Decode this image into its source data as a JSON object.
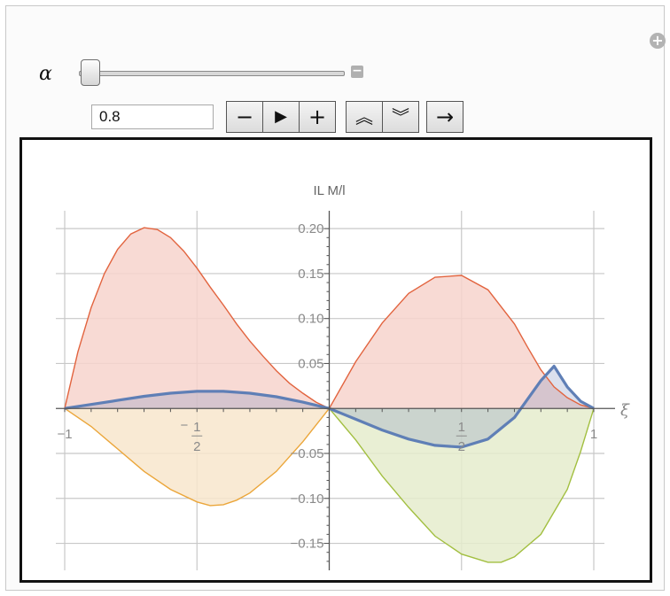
{
  "controls": {
    "parameter_label": "α",
    "slider_value": 0.8,
    "input_value": "0.8",
    "add_icon_glyph": "+",
    "collapse_icon_glyph": "−",
    "buttons": [
      {
        "name": "decrement-button",
        "icon": "minus-icon",
        "glyph": "−"
      },
      {
        "name": "play-button",
        "icon": "play-icon",
        "glyph": "▶"
      },
      {
        "name": "increment-button",
        "icon": "plus-icon",
        "glyph": "+"
      },
      {
        "name": "faster-button",
        "icon": "double-chevron-up-icon",
        "glyph": "︽"
      },
      {
        "name": "slower-button",
        "icon": "double-chevron-down-icon",
        "glyph": "︾"
      },
      {
        "name": "direction-button",
        "icon": "arrow-right-icon",
        "glyph": "→"
      }
    ]
  },
  "chart_data": {
    "type": "area",
    "ylabel": "IL M/l",
    "xlabel": "ξ",
    "xlim": [
      -1.0,
      1.0
    ],
    "ylim": [
      -0.18,
      0.21
    ],
    "grid": true,
    "x_ticks": [
      {
        "value": -1,
        "label": "−1"
      },
      {
        "value": -0.5,
        "label": "−",
        "numerator": "1",
        "denominator": "2"
      },
      {
        "value": 0.5,
        "label": "",
        "numerator": "1",
        "denominator": "2"
      },
      {
        "value": 1,
        "label": "1"
      }
    ],
    "y_ticks": [
      {
        "value": 0.2,
        "label": "0.20"
      },
      {
        "value": 0.15,
        "label": "0.15"
      },
      {
        "value": 0.1,
        "label": "0.10"
      },
      {
        "value": 0.05,
        "label": "0.05"
      },
      {
        "value": -0.05,
        "label": "−0.05"
      },
      {
        "value": -0.1,
        "label": "−0.10"
      },
      {
        "value": -0.15,
        "label": "−0.15"
      }
    ],
    "colors": {
      "red": "#e2643f",
      "red_fill": "#f7d3cc",
      "orange": "#eba63a",
      "orange_fill": "#f8e6cc",
      "green": "#a2bf40",
      "green_fill": "#e5eccc",
      "blue": "#5f7fb6",
      "grid": "#c8c8c8",
      "axis": "#555555"
    },
    "series": [
      {
        "key": "upper-left",
        "color_key": "red",
        "fill_key": "red_fill",
        "x": [
          -1.0,
          -0.95,
          -0.9,
          -0.85,
          -0.8,
          -0.75,
          -0.7,
          -0.65,
          -0.6,
          -0.55,
          -0.5,
          -0.45,
          -0.4,
          -0.35,
          -0.3,
          -0.25,
          -0.2,
          -0.15,
          -0.1,
          -0.05,
          0.0
        ],
        "y": [
          0.0,
          0.063,
          0.112,
          0.15,
          0.177,
          0.194,
          0.201,
          0.199,
          0.19,
          0.175,
          0.156,
          0.135,
          0.115,
          0.094,
          0.075,
          0.058,
          0.042,
          0.028,
          0.017,
          0.007,
          0.0
        ]
      },
      {
        "key": "lower-left",
        "color_key": "orange",
        "fill_key": "orange_fill",
        "x": [
          -1.0,
          -0.9,
          -0.8,
          -0.7,
          -0.6,
          -0.5,
          -0.45,
          -0.4,
          -0.35,
          -0.3,
          -0.2,
          -0.1,
          0.0
        ],
        "y": [
          0.0,
          -0.02,
          -0.045,
          -0.07,
          -0.09,
          -0.104,
          -0.108,
          -0.107,
          -0.102,
          -0.094,
          -0.07,
          -0.037,
          0.0
        ]
      },
      {
        "key": "upper-right",
        "color_key": "red",
        "fill_key": "red_fill",
        "x": [
          0.0,
          0.1,
          0.2,
          0.3,
          0.4,
          0.5,
          0.6,
          0.7,
          0.75,
          0.8,
          0.85,
          0.9,
          0.95,
          1.0
        ],
        "y": [
          0.0,
          0.052,
          0.095,
          0.128,
          0.146,
          0.148,
          0.132,
          0.094,
          0.068,
          0.043,
          0.024,
          0.012,
          0.004,
          0.0
        ]
      },
      {
        "key": "lower-right",
        "color_key": "green",
        "fill_key": "green_fill",
        "x": [
          0.0,
          0.1,
          0.2,
          0.3,
          0.4,
          0.5,
          0.6,
          0.65,
          0.7,
          0.8,
          0.9,
          0.95,
          1.0
        ],
        "y": [
          0.0,
          -0.035,
          -0.075,
          -0.11,
          -0.142,
          -0.162,
          -0.171,
          -0.171,
          -0.165,
          -0.14,
          -0.09,
          -0.048,
          0.0
        ]
      },
      {
        "key": "influence-line",
        "color_key": "blue",
        "x": [
          -1.0,
          -0.9,
          -0.8,
          -0.7,
          -0.6,
          -0.5,
          -0.4,
          -0.3,
          -0.2,
          -0.1,
          0.0,
          0.1,
          0.2,
          0.3,
          0.4,
          0.5,
          0.6,
          0.7,
          0.8,
          0.85,
          0.9,
          0.95,
          1.0
        ],
        "y": [
          0.0,
          0.0045,
          0.009,
          0.0135,
          0.017,
          0.019,
          0.019,
          0.017,
          0.013,
          0.007,
          0.0,
          -0.012,
          -0.024,
          -0.034,
          -0.041,
          -0.043,
          -0.034,
          -0.01,
          0.031,
          0.047,
          0.024,
          0.008,
          0.0
        ]
      }
    ]
  }
}
